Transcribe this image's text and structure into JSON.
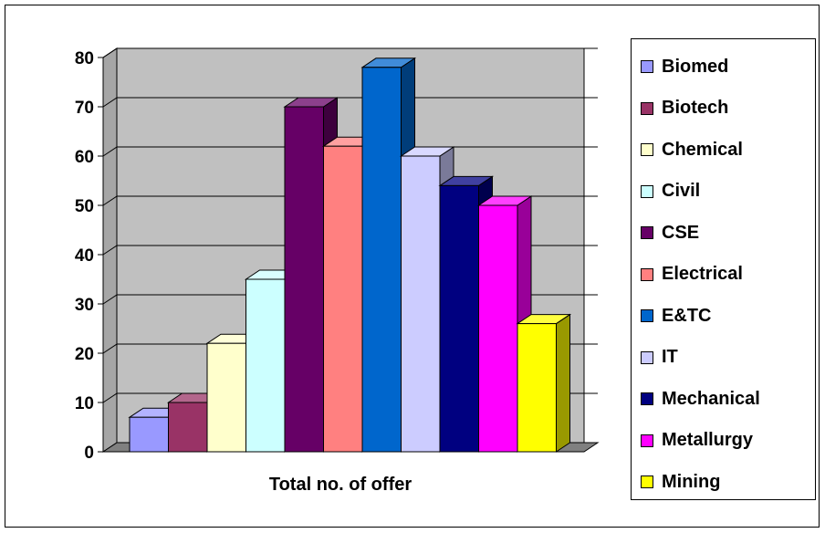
{
  "chart_data": {
    "type": "bar",
    "title": "",
    "xlabel": "Total no. of offer",
    "ylabel": "",
    "ylim": [
      0,
      80
    ],
    "yticks": [
      "0",
      "10",
      "20",
      "30",
      "40",
      "50",
      "60",
      "70",
      "80"
    ],
    "grid": true,
    "style": "3d",
    "legend_position": "right",
    "series": [
      {
        "name": "Biomed",
        "value": 7,
        "color": "#9999ff"
      },
      {
        "name": "Biotech",
        "value": 10,
        "color": "#993366"
      },
      {
        "name": "Chemical",
        "value": 22,
        "color": "#ffffcc"
      },
      {
        "name": "Civil",
        "value": 35,
        "color": "#ccffff"
      },
      {
        "name": "CSE",
        "value": 70,
        "color": "#660066"
      },
      {
        "name": "Electrical",
        "value": 62,
        "color": "#ff8080"
      },
      {
        "name": "E&TC",
        "value": 78,
        "color": "#0066cc"
      },
      {
        "name": "IT",
        "value": 60,
        "color": "#ccccff"
      },
      {
        "name": "Mechanical",
        "value": 54,
        "color": "#000080"
      },
      {
        "name": "Metallurgy",
        "value": 50,
        "color": "#ff00ff"
      },
      {
        "name": "Mining",
        "value": 26,
        "color": "#ffff00"
      }
    ]
  }
}
